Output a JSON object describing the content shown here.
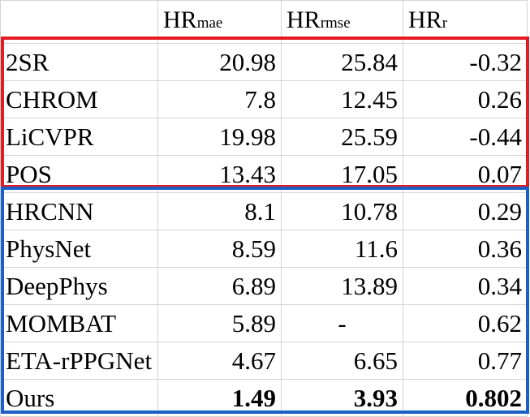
{
  "header": {
    "col1_main": "HR",
    "col1_sub": "mae",
    "col2_main": "HR",
    "col2_sub": "rmse",
    "col3_main": "HR",
    "col3_sub": "r"
  },
  "rows": [
    {
      "name": "2SR",
      "mae": "20.98",
      "rmse": "25.84",
      "r": "-0.32"
    },
    {
      "name": "CHROM",
      "mae": "7.8",
      "rmse": "12.45",
      "r": "0.26"
    },
    {
      "name": "LiCVPR",
      "mae": "19.98",
      "rmse": "25.59",
      "r": "-0.44"
    },
    {
      "name": "POS",
      "mae": "13.43",
      "rmse": "17.05",
      "r": "0.07"
    },
    {
      "name": "HRCNN",
      "mae": "8.1",
      "rmse": "10.78",
      "r": "0.29"
    },
    {
      "name": "PhysNet",
      "mae": "8.59",
      "rmse": "11.6",
      "r": "0.36"
    },
    {
      "name": "DeepPhys",
      "mae": "6.89",
      "rmse": "13.89",
      "r": "0.34"
    },
    {
      "name": "MOMBAT",
      "mae": "5.89",
      "rmse": "-",
      "r": "0.62"
    },
    {
      "name": "ETA-rPPGNet",
      "mae": "4.67",
      "rmse": "6.65",
      "r": "0.77"
    },
    {
      "name": "Ours",
      "mae": "1.49",
      "rmse": "3.93",
      "r": "0.802"
    }
  ],
  "group_colors": {
    "traditional": "#e31b23",
    "deep_learning": "#1c5fc9"
  }
}
